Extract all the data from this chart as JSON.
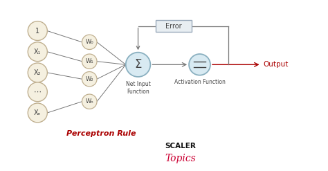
{
  "bg_color": "#ffffff",
  "node_fill": "#f5f0e0",
  "node_edge": "#c0b090",
  "sum_fill": "#d8eaf2",
  "sum_edge": "#8ab0c0",
  "act_fill": "#d8eaf2",
  "act_edge": "#8ab0c0",
  "error_fill": "#e8eef2",
  "error_edge": "#9aaabb",
  "arrow_color": "#777777",
  "output_color": "#aa0000",
  "label_color": "#aa0000",
  "text_color": "#444444",
  "input_labels": [
    "1",
    "X₁",
    "X₂",
    "⋯",
    "Xₙ"
  ],
  "weight_labels": [
    "W₀",
    "W₁",
    "W₂",
    "Wₙ"
  ],
  "perceptron_rule_text": "Perceptron Rule",
  "scaler_text": "SCALER",
  "topics_text": "Topics",
  "net_input_text": "Net Input\nFunction",
  "activation_text": "Activation Function",
  "output_text": "Output",
  "error_text": "Error"
}
